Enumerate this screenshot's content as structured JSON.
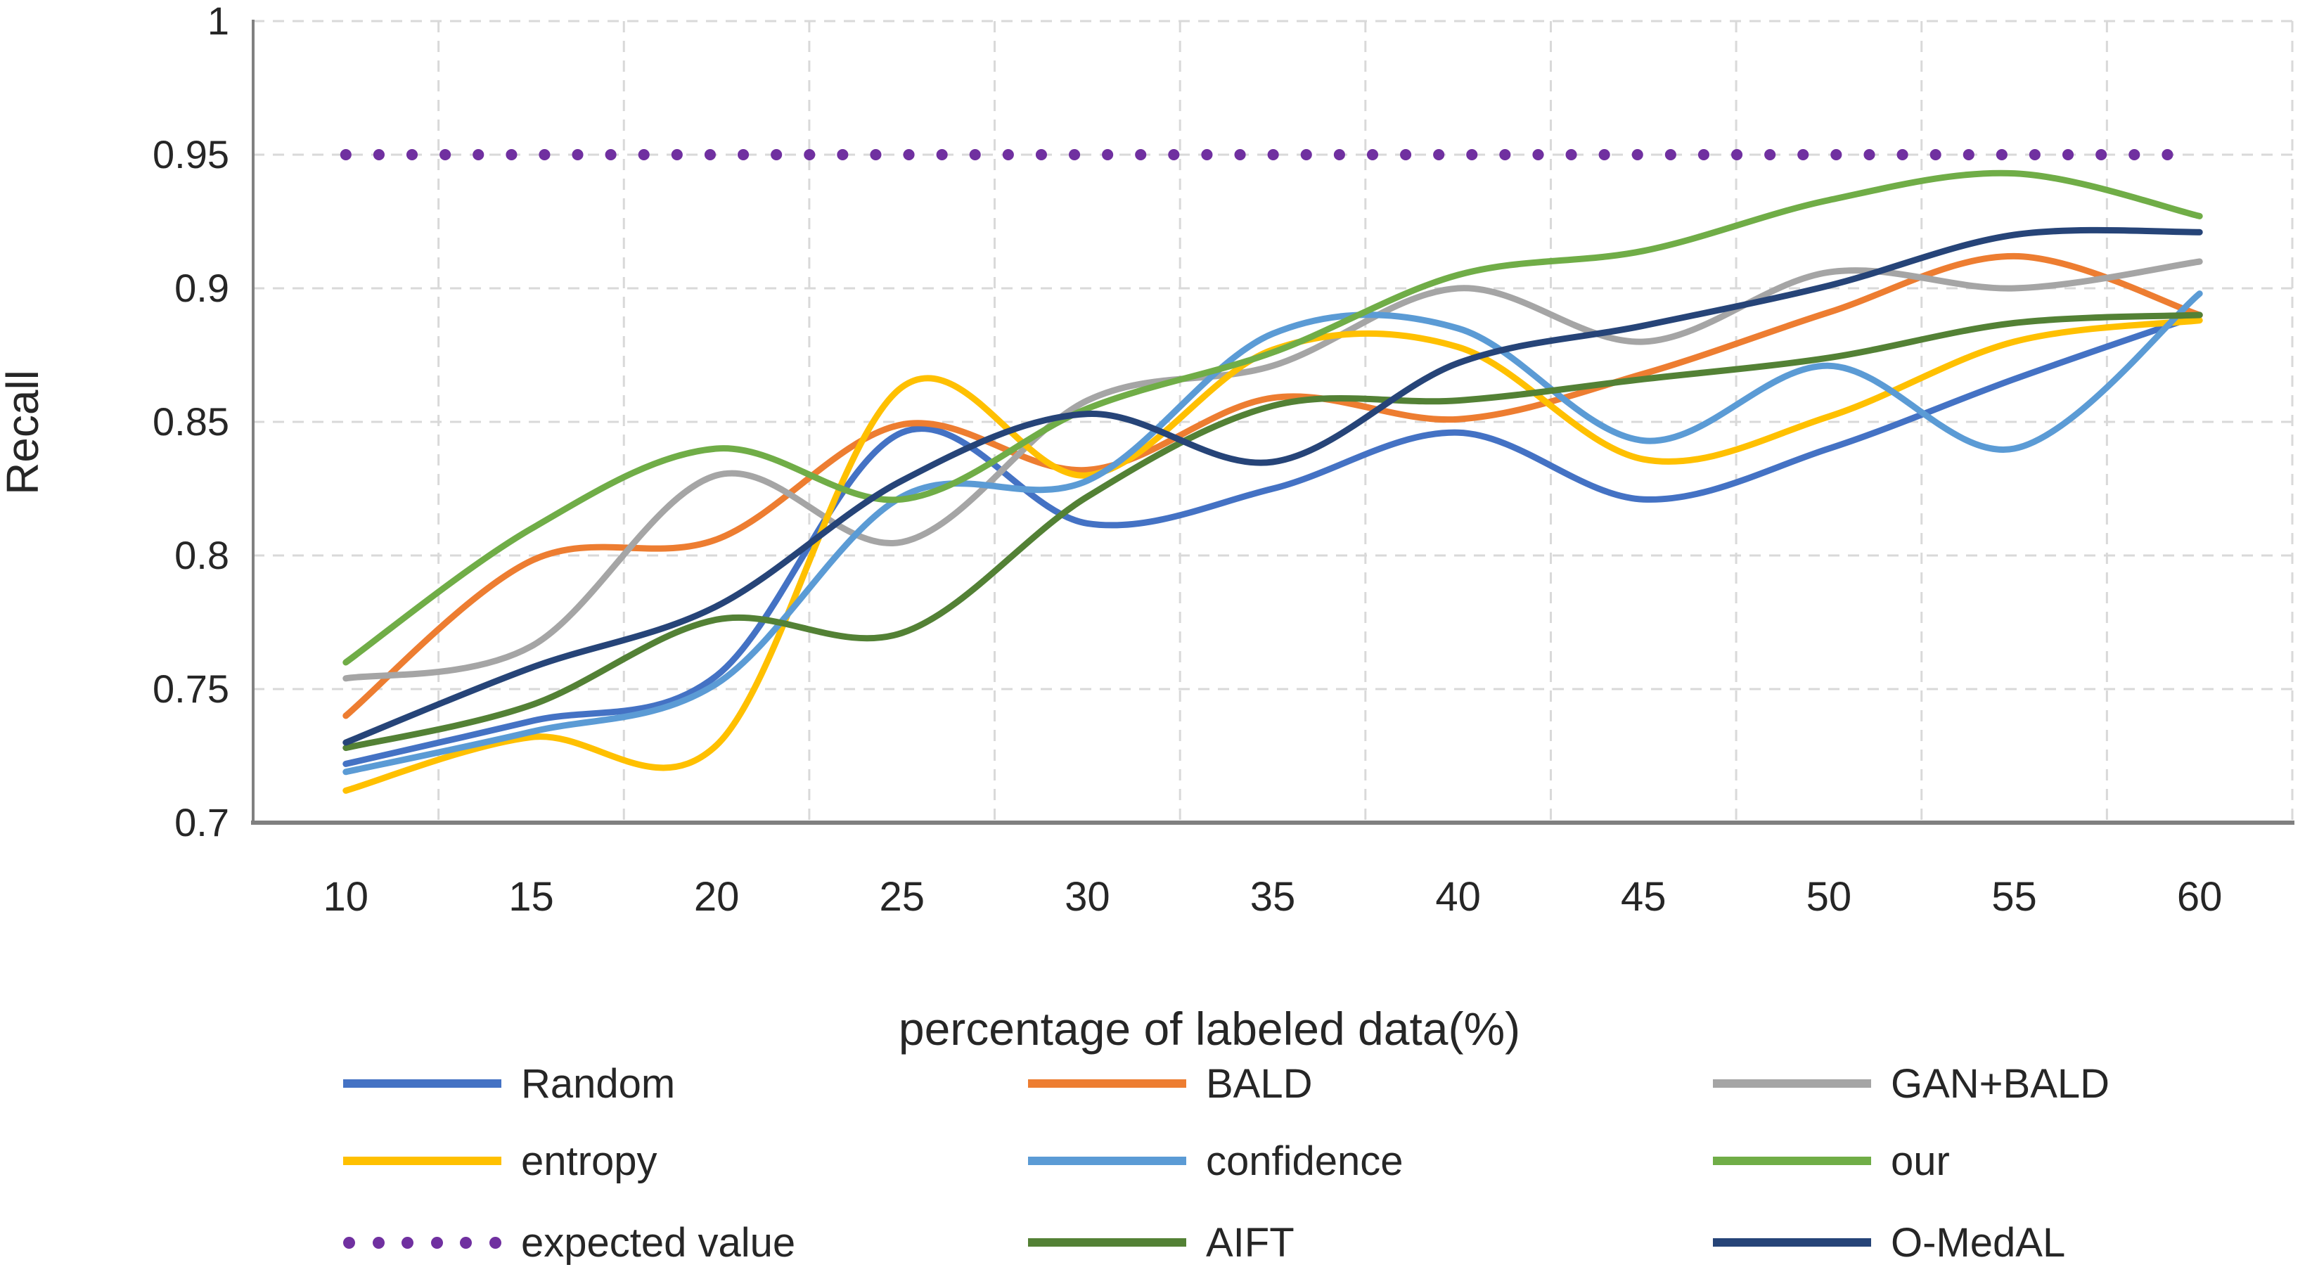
{
  "chart_data": {
    "type": "line",
    "title": "",
    "xlabel": "percentage of labeled data(%)",
    "ylabel": "Recall",
    "x": [
      10,
      15,
      20,
      25,
      30,
      35,
      40,
      45,
      50,
      55,
      60
    ],
    "x_tick_labels": [
      "10",
      "15",
      "20",
      "25",
      "30",
      "35",
      "40",
      "45",
      "50",
      "55",
      "60"
    ],
    "y_tick_labels": [
      "1",
      "0.95",
      "0.9",
      "0.85",
      "0.8",
      "0.75",
      "0.7"
    ],
    "y_ticks": [
      1.0,
      0.95,
      0.9,
      0.85,
      0.8,
      0.75,
      0.7
    ],
    "ylim": [
      0.7,
      1.0
    ],
    "grid": {
      "horizontal": true,
      "vertical": true,
      "style": "dashed",
      "color": "#D9D9D9"
    },
    "smoothing": "spline",
    "legend_position": "bottom",
    "legend_columns": 3,
    "series": [
      {
        "name": "Random",
        "color": "#4472C4",
        "style": "solid",
        "values": [
          0.722,
          0.738,
          0.755,
          0.846,
          0.812,
          0.825,
          0.846,
          0.821,
          0.84,
          0.866,
          0.89
        ]
      },
      {
        "name": "BALD",
        "color": "#ED7D31",
        "style": "solid",
        "values": [
          0.74,
          0.798,
          0.806,
          0.849,
          0.832,
          0.859,
          0.851,
          0.868,
          0.891,
          0.912,
          0.89
        ]
      },
      {
        "name": "GAN+BALD",
        "color": "#A5A5A5",
        "style": "solid",
        "values": [
          0.754,
          0.766,
          0.83,
          0.805,
          0.858,
          0.871,
          0.9,
          0.88,
          0.906,
          0.9,
          0.91
        ]
      },
      {
        "name": "entropy",
        "color": "#FFC000",
        "style": "solid",
        "values": [
          0.712,
          0.732,
          0.729,
          0.863,
          0.83,
          0.877,
          0.878,
          0.836,
          0.852,
          0.88,
          0.888
        ]
      },
      {
        "name": "confidence",
        "color": "#5B9BD5",
        "style": "solid",
        "values": [
          0.719,
          0.734,
          0.752,
          0.822,
          0.828,
          0.883,
          0.885,
          0.843,
          0.871,
          0.84,
          0.898
        ]
      },
      {
        "name": "our",
        "color": "#70AD47",
        "style": "solid",
        "values": [
          0.76,
          0.81,
          0.84,
          0.821,
          0.855,
          0.876,
          0.905,
          0.914,
          0.933,
          0.943,
          0.927
        ]
      },
      {
        "name": "expected value",
        "color": "#7030A0",
        "style": "dotted",
        "values": [
          0.95,
          0.95,
          0.95,
          0.95,
          0.95,
          0.95,
          0.95,
          0.95,
          0.95,
          0.95,
          0.95
        ]
      },
      {
        "name": "AIFT",
        "color": "#538135",
        "style": "solid",
        "values": [
          0.728,
          0.744,
          0.776,
          0.771,
          0.822,
          0.856,
          0.858,
          0.866,
          0.874,
          0.887,
          0.89
        ]
      },
      {
        "name": "O-MedAL",
        "color": "#264478",
        "style": "solid",
        "values": [
          0.73,
          0.758,
          0.781,
          0.828,
          0.853,
          0.835,
          0.872,
          0.886,
          0.901,
          0.92,
          0.921
        ]
      }
    ],
    "legend_order": [
      "Random",
      "BALD",
      "GAN+BALD",
      "entropy",
      "confidence",
      "our",
      "expected value",
      "AIFT",
      "O-MedAL"
    ]
  },
  "style": {
    "axis_color": "#808080",
    "grid_color": "#D9D9D9",
    "text_color": "#262626",
    "background": "#FFFFFF"
  }
}
